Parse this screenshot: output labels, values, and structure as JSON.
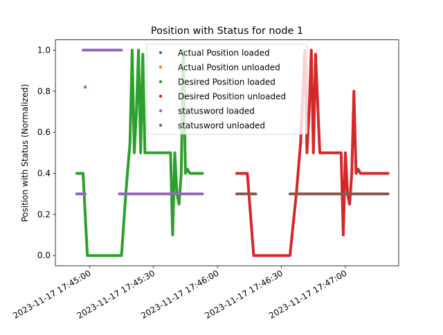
{
  "chart_data": {
    "type": "scatter",
    "title": "Position with Status for node 1",
    "xlabel": "",
    "ylabel": "Position with Status (Normalized)",
    "x_ticks": [
      "2023-11-17 17:45:00",
      "2023-11-17 17:45:30",
      "2023-11-17 17:46:00",
      "2023-11-17 17:46:30",
      "2023-11-17 17:47:00"
    ],
    "x_range": [
      "2023-11-17 17:44:44",
      "2023-11-17 17:47:25"
    ],
    "y_ticks": [
      "0.0",
      "0.2",
      "0.4",
      "0.6",
      "0.8",
      "1.0"
    ],
    "ylim": [
      -0.05,
      1.05
    ],
    "grid": false,
    "legend_position": "upper center",
    "series": [
      {
        "name": "Actual Position loaded",
        "color": "#1f77b4",
        "x": [],
        "y": []
      },
      {
        "name": "Actual Position unloaded",
        "color": "#ff7f0e",
        "x": [],
        "y": []
      },
      {
        "name": "Desired Position loaded",
        "color": "#2ca02c",
        "x": [
          "2023-11-17 17:44:54",
          "2023-11-17 17:44:57",
          "2023-11-17 17:44:59",
          "2023-11-17 17:45:15",
          "2023-11-17 17:45:17",
          "2023-11-17 17:45:19",
          "2023-11-17 17:45:20",
          "2023-11-17 17:45:21",
          "2023-11-17 17:45:22",
          "2023-11-17 17:45:23",
          "2023-11-17 17:45:24",
          "2023-11-17 17:45:25",
          "2023-11-17 17:45:26",
          "2023-11-17 17:45:27",
          "2023-11-17 17:45:28",
          "2023-11-17 17:45:29",
          "2023-11-17 17:45:38",
          "2023-11-17 17:45:39",
          "2023-11-17 17:45:40",
          "2023-11-17 17:45:41",
          "2023-11-17 17:45:42",
          "2023-11-17 17:45:43",
          "2023-11-17 17:45:44",
          "2023-11-17 17:45:45",
          "2023-11-17 17:45:46",
          "2023-11-17 17:45:47",
          "2023-11-17 17:45:49",
          "2023-11-17 17:45:53"
        ],
        "y": [
          0.4,
          0.4,
          0.0,
          0.0,
          0.3,
          0.55,
          1.0,
          0.5,
          0.7,
          1.0,
          0.5,
          0.98,
          0.5,
          0.5,
          0.5,
          0.5,
          0.5,
          0.1,
          0.5,
          0.3,
          0.25,
          0.4,
          1.0,
          0.4,
          0.42,
          0.4,
          0.4,
          0.4
        ]
      },
      {
        "name": "Desired Position unloaded",
        "color": "#d62728",
        "x": [
          "2023-11-17 17:46:09",
          "2023-11-17 17:46:14",
          "2023-11-17 17:46:17",
          "2023-11-17 17:46:34",
          "2023-11-17 17:46:37",
          "2023-11-17 17:46:39",
          "2023-11-17 17:46:41",
          "2023-11-17 17:46:42",
          "2023-11-17 17:46:43",
          "2023-11-17 17:46:44",
          "2023-11-17 17:46:45",
          "2023-11-17 17:46:46",
          "2023-11-17 17:46:48",
          "2023-11-17 17:46:57",
          "2023-11-17 17:46:58",
          "2023-11-17 17:46:59",
          "2023-11-17 17:47:00",
          "2023-11-17 17:47:01",
          "2023-11-17 17:47:02",
          "2023-11-17 17:47:03",
          "2023-11-17 17:47:04",
          "2023-11-17 17:47:05",
          "2023-11-17 17:47:06",
          "2023-11-17 17:47:07",
          "2023-11-17 17:47:09",
          "2023-11-17 17:47:20"
        ],
        "y": [
          0.4,
          0.4,
          0.0,
          0.0,
          0.3,
          0.55,
          1.0,
          0.5,
          0.7,
          1.0,
          0.5,
          0.98,
          0.5,
          0.5,
          0.5,
          0.1,
          0.5,
          0.3,
          0.25,
          0.4,
          0.8,
          0.4,
          0.42,
          0.4,
          0.4,
          0.4
        ]
      },
      {
        "name": "statusword loaded",
        "color": "#9467bd",
        "x": [
          "2023-11-17 17:44:54",
          "2023-11-17 17:44:58",
          "2023-11-17 17:45:14",
          "2023-11-17 17:45:53",
          "2023-11-17 17:44:57",
          "2023-11-17 17:45:15",
          "2023-11-17 17:44:58"
        ],
        "y": [
          0.3,
          0.3,
          0.3,
          0.3,
          1.0,
          1.0,
          0.82
        ]
      },
      {
        "name": "statusword unloaded",
        "color": "#8c564b",
        "x": [
          "2023-11-17 17:46:09",
          "2023-11-17 17:46:18",
          "2023-11-17 17:46:34",
          "2023-11-17 17:47:20"
        ],
        "y": [
          0.3,
          0.3,
          0.3,
          0.3
        ]
      }
    ]
  }
}
